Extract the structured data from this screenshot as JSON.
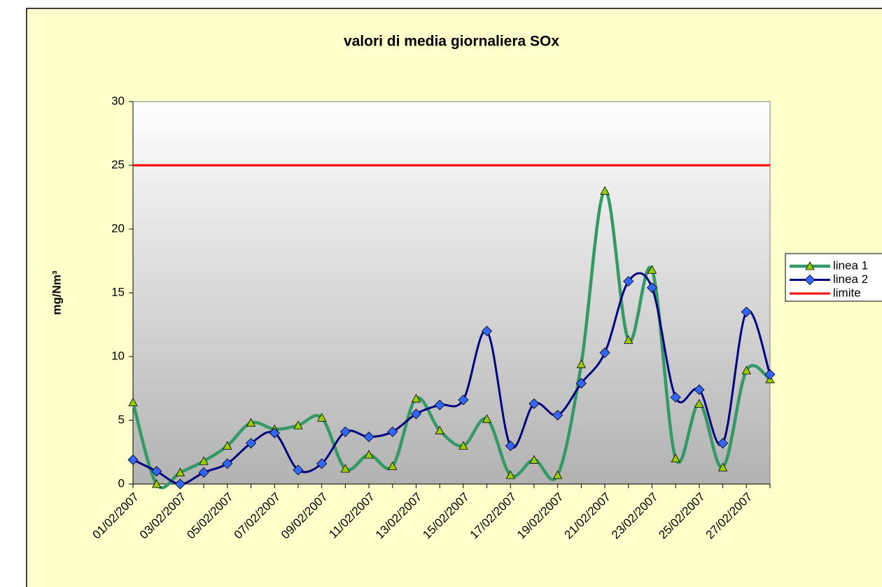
{
  "chart_data": {
    "type": "line",
    "title": "valori di media giornaliera  SOx",
    "y_label": "mg/Nm³",
    "categories": [
      "01/02/2007",
      null,
      "03/02/2007",
      null,
      "05/02/2007",
      null,
      "07/02/2007",
      null,
      "09/02/2007",
      null,
      "11/02/2007",
      null,
      "13/02/2007",
      null,
      "15/02/2007",
      null,
      "17/02/2007",
      null,
      "19/02/2007",
      null,
      "21/02/2007",
      null,
      "23/02/2007",
      null,
      "25/02/2007",
      null,
      "27/02/2007",
      null
    ],
    "series": [
      {
        "name": "linea 1",
        "color": "#339966",
        "marker": "triangle",
        "marker_color": "#99cc00",
        "values": [
          6.4,
          0,
          0.9,
          1.8,
          3.0,
          4.8,
          4.3,
          4.6,
          5.2,
          1.2,
          2.3,
          1.4,
          6.7,
          4.2,
          3.0,
          5.1,
          0.7,
          1.9,
          0.7,
          9.4,
          23.0,
          11.3,
          16.8,
          2.0,
          6.3,
          1.3,
          8.9,
          8.2
        ]
      },
      {
        "name": "linea 2",
        "color": "#000080",
        "marker": "diamond",
        "marker_color": "#3366ff",
        "values": [
          1.9,
          1.0,
          0.0,
          0.9,
          1.6,
          3.2,
          4.0,
          1.1,
          1.6,
          4.1,
          3.7,
          4.1,
          5.5,
          6.2,
          6.6,
          12.0,
          3.0,
          6.3,
          5.4,
          7.9,
          10.3,
          15.9,
          15.4,
          6.8,
          7.4,
          3.2,
          13.5,
          8.6
        ]
      },
      {
        "name": "limite",
        "color": "#ff0000",
        "marker": "none",
        "values": [
          25,
          25,
          25,
          25,
          25,
          25,
          25,
          25,
          25,
          25,
          25,
          25,
          25,
          25,
          25,
          25,
          25,
          25,
          25,
          25,
          25,
          25,
          25,
          25,
          25,
          25,
          25,
          25
        ]
      }
    ],
    "ylim": [
      0,
      30
    ],
    "yticks": [
      0,
      5,
      10,
      15,
      20,
      25,
      30
    ],
    "grid": false,
    "legend": "right"
  }
}
